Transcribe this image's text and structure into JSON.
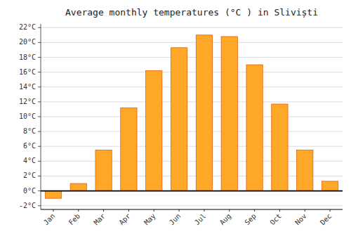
{
  "chart_data": {
    "type": "bar",
    "title": "Average monthly temperatures (°C ) in Sliviști",
    "categories": [
      "Jan",
      "Feb",
      "Mar",
      "Apr",
      "May",
      "Jun",
      "Jul",
      "Aug",
      "Sep",
      "Oct",
      "Nov",
      "Dec"
    ],
    "values": [
      -1.0,
      1.0,
      5.5,
      11.2,
      16.2,
      19.3,
      21.0,
      20.8,
      17.0,
      11.7,
      5.5,
      1.3
    ],
    "color": "#FFA726",
    "ylim": [
      -2.5,
      22.5
    ],
    "yticks": [
      {
        "value": -2,
        "label": "-2°C"
      },
      {
        "value": 0,
        "label": "0°C"
      },
      {
        "value": 2,
        "label": "2°C"
      },
      {
        "value": 4,
        "label": "4°C"
      },
      {
        "value": 6,
        "label": "6°C"
      },
      {
        "value": 8,
        "label": "8°C"
      },
      {
        "value": 10,
        "label": "10°C"
      },
      {
        "value": 12,
        "label": "12°C"
      },
      {
        "value": 14,
        "label": "14°C"
      },
      {
        "value": 16,
        "label": "16°C"
      },
      {
        "value": 18,
        "label": "18°C"
      },
      {
        "value": 20,
        "label": "20°C"
      },
      {
        "value": 22,
        "label": "22°C"
      }
    ],
    "grid": true
  }
}
